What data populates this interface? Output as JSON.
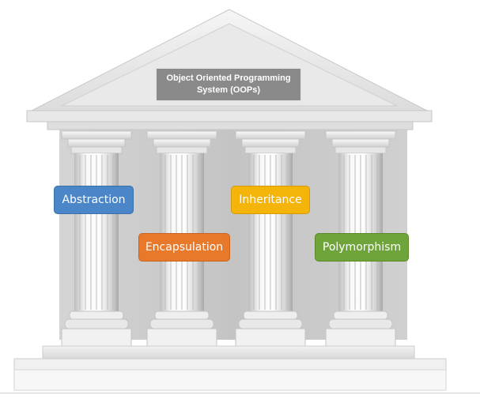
{
  "diagram": {
    "title": "Object Oriented Programming System (OOPs)",
    "pillars": [
      {
        "label": "Abstraction",
        "color": "#4a86c8"
      },
      {
        "label": "Encapsulation",
        "color": "#e8782a"
      },
      {
        "label": "Inheritance",
        "color": "#f5b40a"
      },
      {
        "label": "Polymorphism",
        "color": "#6fa43a"
      }
    ]
  },
  "colors": {
    "marble_light": "#f4f4f4",
    "marble_mid": "#d9d9d9",
    "marble_dark": "#a9a9a9",
    "title_box": "#8a8a8a"
  }
}
